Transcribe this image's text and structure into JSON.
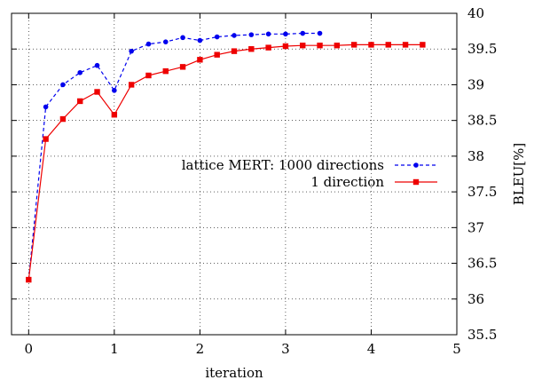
{
  "chart_data": {
    "type": "line",
    "xlabel": "iteration",
    "ylabel": "BLEU[%]",
    "xlim": [
      -0.2,
      5
    ],
    "ylim": [
      35.5,
      40
    ],
    "x_ticks": [
      0,
      1,
      2,
      3,
      4,
      5
    ],
    "y_ticks": [
      35.5,
      36,
      36.5,
      37,
      37.5,
      38,
      38.5,
      39,
      39.5,
      40
    ],
    "y_axis_side": "right",
    "grid": true,
    "legend_position": "center-right",
    "series": [
      {
        "name": "lattice MERT: 1000 directions",
        "color": "#0000ee",
        "line_style": "dashed",
        "marker": "circle",
        "x": [
          0,
          0.2,
          0.4,
          0.6,
          0.8,
          1.0,
          1.2,
          1.4,
          1.6,
          1.8,
          2.0,
          2.2,
          2.4,
          2.6,
          2.8,
          3.0,
          3.2,
          3.4
        ],
        "y": [
          36.27,
          38.69,
          39.0,
          39.17,
          39.27,
          38.92,
          39.47,
          39.57,
          39.6,
          39.66,
          39.62,
          39.67,
          39.69,
          39.7,
          39.71,
          39.71,
          39.72,
          39.72
        ]
      },
      {
        "name": "1 direction",
        "color": "#ee0000",
        "line_style": "solid",
        "marker": "square",
        "x": [
          0,
          0.2,
          0.4,
          0.6,
          0.8,
          1.0,
          1.2,
          1.4,
          1.6,
          1.8,
          2.0,
          2.2,
          2.4,
          2.6,
          2.8,
          3.0,
          3.2,
          3.4,
          3.6,
          3.8,
          4.0,
          4.2,
          4.4,
          4.6
        ],
        "y": [
          36.27,
          38.24,
          38.52,
          38.77,
          38.9,
          38.58,
          39.0,
          39.13,
          39.19,
          39.25,
          39.35,
          39.42,
          39.47,
          39.5,
          39.52,
          39.54,
          39.55,
          39.55,
          39.55,
          39.56,
          39.56,
          39.56,
          39.56,
          39.56
        ]
      }
    ]
  }
}
